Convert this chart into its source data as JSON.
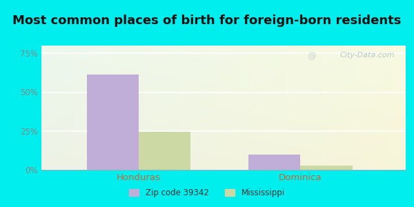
{
  "title": "Most common places of birth for foreign-born residents",
  "categories": [
    "Honduras",
    "Dominica"
  ],
  "zipcode_values": [
    0.615,
    0.1
  ],
  "state_values": [
    0.245,
    0.028
  ],
  "zipcode_color": "#c0aed8",
  "state_color": "#cdd9a5",
  "bar_width": 0.32,
  "ylim": [
    0,
    0.8
  ],
  "yticks": [
    0,
    0.25,
    0.5,
    0.75
  ],
  "ytick_labels": [
    "0%",
    "25%",
    "50%",
    "75%"
  ],
  "xlabel_color": "#cc6633",
  "legend_labels": [
    "Zip code 39342",
    "Mississippi"
  ],
  "title_fontsize": 13,
  "title_color": "#111111",
  "fig_bg_color": "#00eeee",
  "plot_bg_left": "#e8f5ed",
  "plot_bg_right": "#eef5e5",
  "watermark": "City-Data.com",
  "watermark_color": "#b0c8c8",
  "grid_color": "#ffffff",
  "tick_color": "#888888"
}
